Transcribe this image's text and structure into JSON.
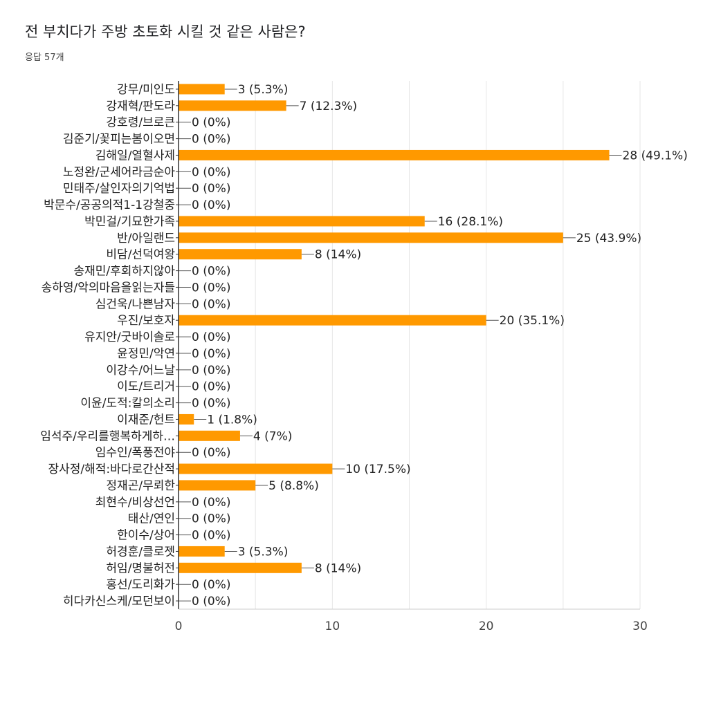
{
  "header": {
    "title": "전 부치다가 주방 초토화 시킬 것 같은 사람은?",
    "response_count": "응답 57개"
  },
  "colors": {
    "bar": "#ff9900",
    "axis": "#333333",
    "grid": "#e6e6e6",
    "text": "#222222"
  },
  "chart_data": {
    "type": "bar",
    "orientation": "horizontal",
    "total_responses": 57,
    "categories": [
      "강무/미인도",
      "강재혁/판도라",
      "강호령/브로큰",
      "김준기/꽃피는봄이오면",
      "김해일/열혈사제",
      "노정완/군세어라금순아",
      "민태주/살인자의기억법",
      "박문수/공공의적1-1강철중",
      "박민걸/기묘한가족",
      "반/아일랜드",
      "비담/선덕여왕",
      "송재민/후회하지않아",
      "송하영/악의마음을읽는자들",
      "심건욱/나쁜남자",
      "우진/보호자",
      "유지안/굿바이솔로",
      "윤정민/악연",
      "이강수/어느날",
      "이도/트리거",
      "이윤/도적:칼의소리",
      "이재준/헌트",
      "임석주/우리를행복하게하…",
      "임수인/폭풍전야",
      "장사정/해적:바다로간산적",
      "정재곤/무뢰한",
      "최현수/비상선언",
      "태산/연인",
      "한이수/상어",
      "허경훈/클로젯",
      "허임/명불허전",
      "홍선/도리화가",
      "히다카신스케/모던보이"
    ],
    "values": [
      3,
      7,
      0,
      0,
      28,
      0,
      0,
      0,
      16,
      25,
      8,
      0,
      0,
      0,
      20,
      0,
      0,
      0,
      0,
      0,
      1,
      4,
      0,
      10,
      5,
      0,
      0,
      0,
      3,
      8,
      0,
      0
    ],
    "data_labels": [
      "3 (5.3%)",
      "7 (12.3%)",
      "0 (0%)",
      "0 (0%)",
      "28 (49.1%)",
      "0 (0%)",
      "0 (0%)",
      "0 (0%)",
      "16 (28.1%)",
      "25 (43.9%)",
      "8 (14%)",
      "0 (0%)",
      "0 (0%)",
      "0 (0%)",
      "20 (35.1%)",
      "0 (0%)",
      "0 (0%)",
      "0 (0%)",
      "0 (0%)",
      "0 (0%)",
      "1 (1.8%)",
      "4 (7%)",
      "0 (0%)",
      "10 (17.5%)",
      "5 (8.8%)",
      "0 (0%)",
      "0 (0%)",
      "0 (0%)",
      "3 (5.3%)",
      "8 (14%)",
      "0 (0%)",
      "0 (0%)"
    ],
    "xlim": [
      0,
      30
    ],
    "x_ticks": [
      0,
      10,
      20,
      30
    ],
    "grid": true,
    "legend": "none"
  }
}
